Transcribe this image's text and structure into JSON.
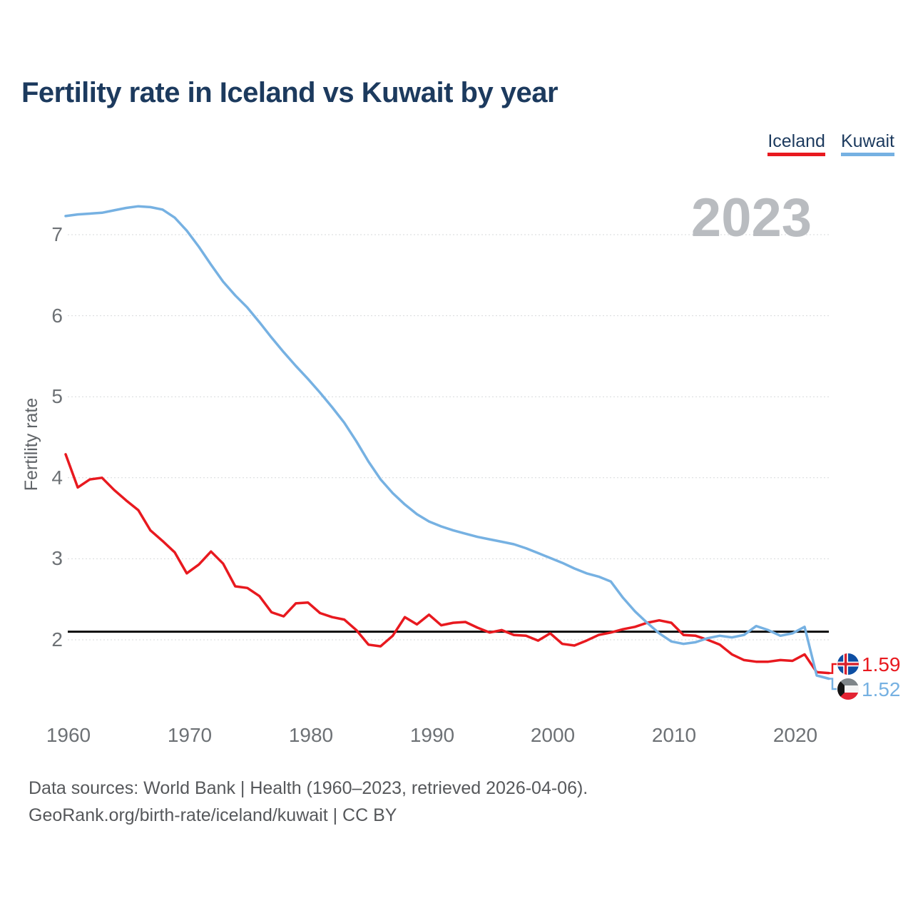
{
  "title": "Fertility rate in Iceland vs Kuwait by year",
  "watermark": "2023",
  "legend": [
    {
      "label": "Iceland",
      "color": "#e8191f"
    },
    {
      "label": "Kuwait",
      "color": "#76b1e2"
    }
  ],
  "y_axis": {
    "label": "Fertility rate",
    "ticks": [
      7,
      6,
      5,
      4,
      3,
      2
    ]
  },
  "x_axis": {
    "ticks": [
      1960,
      1970,
      1980,
      1990,
      2000,
      2010,
      2020
    ]
  },
  "end_labels": [
    {
      "series": "Iceland",
      "value": "1.59",
      "flag": "iceland-flag",
      "color": "#e8191f"
    },
    {
      "series": "Kuwait",
      "value": "1.52",
      "flag": "kuwait-flag",
      "color": "#76b1e2"
    }
  ],
  "footer": {
    "line1": "Data sources: World Bank | Health (1960–2023, retrieved 2026-04-06).",
    "line2": "GeoRank.org/birth-rate/iceland/kuwait | CC BY"
  },
  "chart_data": {
    "type": "line",
    "title": "Fertility rate in Iceland vs Kuwait by year",
    "ylabel": "Fertility rate",
    "xlim": [
      1960,
      2023
    ],
    "ylim": [
      1.4,
      7.5
    ],
    "grid": true,
    "legend_position": "top-right",
    "reference_line": 2.1,
    "x": [
      1960,
      1961,
      1962,
      1963,
      1964,
      1965,
      1966,
      1967,
      1968,
      1969,
      1970,
      1971,
      1972,
      1973,
      1974,
      1975,
      1976,
      1977,
      1978,
      1979,
      1980,
      1981,
      1982,
      1983,
      1984,
      1985,
      1986,
      1987,
      1988,
      1989,
      1990,
      1991,
      1992,
      1993,
      1994,
      1995,
      1996,
      1997,
      1998,
      1999,
      2000,
      2001,
      2002,
      2003,
      2004,
      2005,
      2006,
      2007,
      2008,
      2009,
      2010,
      2011,
      2012,
      2013,
      2014,
      2015,
      2016,
      2017,
      2018,
      2019,
      2020,
      2021,
      2022,
      2023
    ],
    "series": [
      {
        "name": "Iceland",
        "color": "#e8191f",
        "values": [
          4.29,
          3.88,
          3.98,
          4.0,
          3.85,
          3.72,
          3.6,
          3.35,
          3.22,
          3.08,
          2.82,
          2.93,
          3.09,
          2.94,
          2.66,
          2.64,
          2.54,
          2.34,
          2.29,
          2.45,
          2.46,
          2.33,
          2.28,
          2.25,
          2.12,
          1.94,
          1.92,
          2.05,
          2.28,
          2.19,
          2.31,
          2.18,
          2.21,
          2.22,
          2.15,
          2.09,
          2.12,
          2.06,
          2.05,
          1.99,
          2.08,
          1.95,
          1.93,
          1.99,
          2.06,
          2.09,
          2.13,
          2.16,
          2.21,
          2.24,
          2.21,
          2.06,
          2.05,
          2.0,
          1.94,
          1.82,
          1.75,
          1.73,
          1.73,
          1.75,
          1.74,
          1.82,
          1.6,
          1.59
        ]
      },
      {
        "name": "Kuwait",
        "color": "#76b1e2",
        "values": [
          7.23,
          7.25,
          7.26,
          7.27,
          7.3,
          7.33,
          7.35,
          7.34,
          7.31,
          7.21,
          7.05,
          6.85,
          6.63,
          6.42,
          6.25,
          6.1,
          5.92,
          5.73,
          5.55,
          5.38,
          5.22,
          5.05,
          4.87,
          4.68,
          4.45,
          4.2,
          3.98,
          3.81,
          3.67,
          3.55,
          3.46,
          3.4,
          3.35,
          3.31,
          3.27,
          3.24,
          3.21,
          3.18,
          3.13,
          3.07,
          3.01,
          2.95,
          2.88,
          2.82,
          2.78,
          2.72,
          2.52,
          2.35,
          2.21,
          2.08,
          1.98,
          1.95,
          1.97,
          2.02,
          2.05,
          2.03,
          2.06,
          2.17,
          2.12,
          2.05,
          2.08,
          2.16,
          1.56,
          1.52
        ]
      }
    ]
  }
}
